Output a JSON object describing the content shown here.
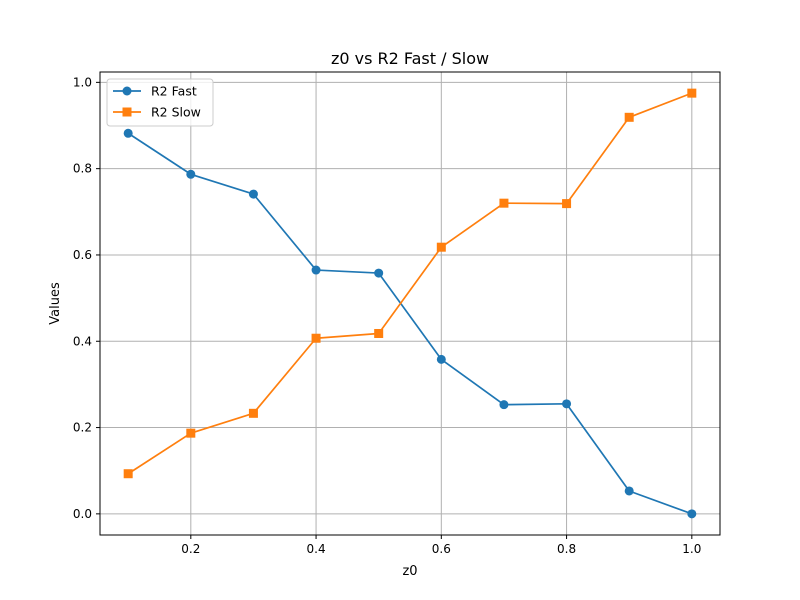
{
  "chart_data": {
    "type": "line",
    "title": "z0 vs R2 Fast / Slow",
    "xlabel": "z0",
    "ylabel": "Values",
    "x": [
      0.1,
      0.2,
      0.3,
      0.4,
      0.5,
      0.6,
      0.7,
      0.8,
      0.9,
      1.0
    ],
    "series": [
      {
        "name": "R2 Fast",
        "color": "#1f77b4",
        "marker": "circle",
        "values": [
          0.882,
          0.787,
          0.741,
          0.565,
          0.558,
          0.358,
          0.253,
          0.255,
          0.053,
          0.0
        ]
      },
      {
        "name": "R2 Slow",
        "color": "#ff7f0e",
        "marker": "square",
        "values": [
          0.093,
          0.187,
          0.233,
          0.407,
          0.418,
          0.618,
          0.72,
          0.719,
          0.919,
          0.975
        ]
      }
    ],
    "xlim": [
      0.055,
      1.045
    ],
    "ylim": [
      -0.049,
      1.024
    ],
    "xticks": [
      "0.2",
      "0.4",
      "0.6",
      "0.8",
      "1.0"
    ],
    "yticks": [
      "0.0",
      "0.2",
      "0.4",
      "0.6",
      "0.8",
      "1.0"
    ],
    "grid": true,
    "legend": "upper-left"
  }
}
